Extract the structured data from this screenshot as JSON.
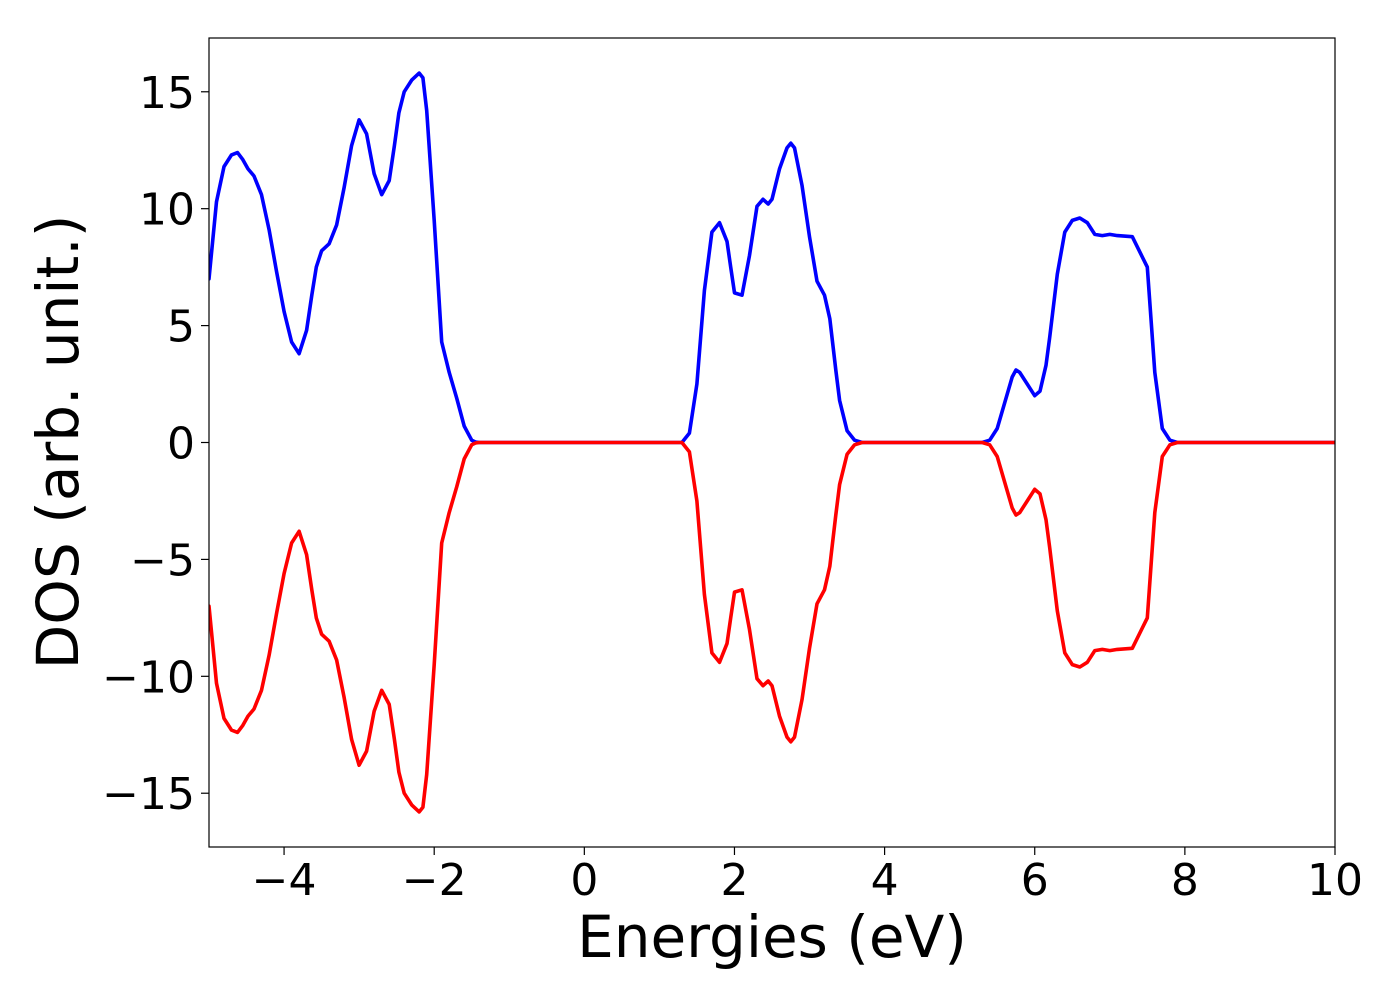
{
  "chart_data": {
    "type": "line",
    "title": "",
    "xlabel": "Energies (eV)",
    "ylabel": "DOS (arb. unit.)",
    "xlim": [
      -5,
      10
    ],
    "ylim": [
      -17.3,
      17.3
    ],
    "x_ticks": [
      -4,
      -2,
      0,
      2,
      4,
      6,
      8,
      10
    ],
    "x_tick_labels": [
      "−4",
      "−2",
      "0",
      "2",
      "4",
      "6",
      "8",
      "10"
    ],
    "y_ticks": [
      15,
      10,
      5,
      0,
      -5,
      -10,
      -15
    ],
    "y_tick_labels": [
      "15",
      "10",
      "5",
      "0",
      "−5",
      "−10",
      "−15"
    ],
    "grid": false,
    "legend": "none",
    "series": [
      {
        "color": "#0000ff",
        "x": [
          -5.0,
          -4.9,
          -4.8,
          -4.7,
          -4.62,
          -4.55,
          -4.48,
          -4.4,
          -4.3,
          -4.2,
          -4.1,
          -4.0,
          -3.9,
          -3.8,
          -3.7,
          -3.63,
          -3.57,
          -3.5,
          -3.4,
          -3.3,
          -3.2,
          -3.1,
          -3.0,
          -2.9,
          -2.8,
          -2.7,
          -2.6,
          -2.53,
          -2.47,
          -2.4,
          -2.3,
          -2.2,
          -2.15,
          -2.1,
          -2.0,
          -1.9,
          -1.8,
          -1.7,
          -1.6,
          -1.5,
          -1.45,
          -1.4,
          -1.3,
          -1.2,
          -1.1,
          -1.0,
          -0.9,
          -0.8,
          -0.7,
          -0.6,
          -0.5,
          0.0,
          1.0,
          1.3,
          1.4,
          1.5,
          1.6,
          1.7,
          1.8,
          1.9,
          1.95,
          2.0,
          2.1,
          2.2,
          2.3,
          2.38,
          2.45,
          2.5,
          2.6,
          2.7,
          2.75,
          2.8,
          2.9,
          3.0,
          3.1,
          3.2,
          3.27,
          3.35,
          3.4,
          3.5,
          3.6,
          3.7,
          3.8,
          3.9,
          4.0,
          4.1,
          4.2,
          4.3,
          4.4,
          4.5,
          5.0,
          5.2,
          5.3,
          5.4,
          5.5,
          5.6,
          5.7,
          5.75,
          5.8,
          5.9,
          6.0,
          6.07,
          6.15,
          6.2,
          6.3,
          6.4,
          6.5,
          6.6,
          6.7,
          6.8,
          6.9,
          7.0,
          7.1,
          7.3,
          7.5,
          7.6,
          7.7,
          7.8,
          7.9,
          8.0,
          8.1,
          8.2,
          8.3,
          8.5,
          9.0,
          10.0
        ],
        "y": [
          7.0,
          10.3,
          11.8,
          12.3,
          12.4,
          12.1,
          11.7,
          11.4,
          10.6,
          9.1,
          7.3,
          5.6,
          4.3,
          3.8,
          4.8,
          6.3,
          7.5,
          8.2,
          8.5,
          9.3,
          10.9,
          12.7,
          13.8,
          13.2,
          11.5,
          10.6,
          11.2,
          12.7,
          14.1,
          15.0,
          15.5,
          15.8,
          15.6,
          14.2,
          9.5,
          4.3,
          3.0,
          1.9,
          0.7,
          0.1,
          0.02,
          0.0,
          0.0,
          0.0,
          0.0,
          0.0,
          0.0,
          0.0,
          0.0,
          0.0,
          0.0,
          0.0,
          0.0,
          0.0,
          0.4,
          2.5,
          6.5,
          9.0,
          9.4,
          8.6,
          7.5,
          6.4,
          6.3,
          8.0,
          10.1,
          10.4,
          10.2,
          10.4,
          11.7,
          12.6,
          12.8,
          12.6,
          11.0,
          8.8,
          6.9,
          6.3,
          5.3,
          3.1,
          1.8,
          0.5,
          0.1,
          0.0,
          0.0,
          0.0,
          0.0,
          0.0,
          0.0,
          0.0,
          0.0,
          0.0,
          0.0,
          0.0,
          0.0,
          0.1,
          0.6,
          1.7,
          2.8,
          3.1,
          3.0,
          2.5,
          2.0,
          2.2,
          3.3,
          4.5,
          7.2,
          9.0,
          9.5,
          9.6,
          9.4,
          8.9,
          8.85,
          8.9,
          8.85,
          8.8,
          7.5,
          3.0,
          0.6,
          0.1,
          0.0,
          0.0,
          0.0,
          0.0,
          0.0,
          0.0,
          0.0,
          0.0
        ]
      },
      {
        "color": "#ff0000",
        "x": [
          -5.0,
          -4.9,
          -4.8,
          -4.7,
          -4.62,
          -4.55,
          -4.48,
          -4.4,
          -4.3,
          -4.2,
          -4.1,
          -4.0,
          -3.9,
          -3.8,
          -3.7,
          -3.63,
          -3.57,
          -3.5,
          -3.4,
          -3.3,
          -3.2,
          -3.1,
          -3.0,
          -2.9,
          -2.8,
          -2.7,
          -2.6,
          -2.53,
          -2.47,
          -2.4,
          -2.3,
          -2.2,
          -2.15,
          -2.1,
          -2.0,
          -1.9,
          -1.8,
          -1.7,
          -1.6,
          -1.5,
          -1.45,
          -1.4,
          -1.3,
          -1.2,
          -1.1,
          -1.0,
          -0.9,
          -0.8,
          -0.7,
          -0.6,
          -0.5,
          0.0,
          1.0,
          1.3,
          1.4,
          1.5,
          1.6,
          1.7,
          1.8,
          1.9,
          1.95,
          2.0,
          2.1,
          2.2,
          2.3,
          2.38,
          2.45,
          2.5,
          2.6,
          2.7,
          2.75,
          2.8,
          2.9,
          3.0,
          3.1,
          3.2,
          3.27,
          3.35,
          3.4,
          3.5,
          3.6,
          3.7,
          3.8,
          3.9,
          4.0,
          4.1,
          4.2,
          4.3,
          4.4,
          4.5,
          5.0,
          5.2,
          5.3,
          5.4,
          5.5,
          5.6,
          5.7,
          5.75,
          5.8,
          5.9,
          6.0,
          6.07,
          6.15,
          6.2,
          6.3,
          6.4,
          6.5,
          6.6,
          6.7,
          6.8,
          6.9,
          7.0,
          7.1,
          7.3,
          7.5,
          7.6,
          7.7,
          7.8,
          7.9,
          8.0,
          8.1,
          8.2,
          8.3,
          8.5,
          9.0,
          10.0
        ],
        "y": [
          -7.0,
          -10.3,
          -11.8,
          -12.3,
          -12.4,
          -12.1,
          -11.7,
          -11.4,
          -10.6,
          -9.1,
          -7.3,
          -5.6,
          -4.3,
          -3.8,
          -4.8,
          -6.3,
          -7.5,
          -8.2,
          -8.5,
          -9.3,
          -10.9,
          -12.7,
          -13.8,
          -13.2,
          -11.5,
          -10.6,
          -11.2,
          -12.7,
          -14.1,
          -15.0,
          -15.5,
          -15.8,
          -15.6,
          -14.2,
          -9.5,
          -4.3,
          -3.0,
          -1.9,
          -0.7,
          -0.1,
          -0.02,
          0.0,
          0.0,
          0.0,
          0.0,
          0.0,
          0.0,
          0.0,
          0.0,
          0.0,
          0.0,
          0.0,
          0.0,
          0.0,
          -0.4,
          -2.5,
          -6.5,
          -9.0,
          -9.4,
          -8.6,
          -7.5,
          -6.4,
          -6.3,
          -8.0,
          -10.1,
          -10.4,
          -10.2,
          -10.4,
          -11.7,
          -12.6,
          -12.8,
          -12.6,
          -11.0,
          -8.8,
          -6.9,
          -6.3,
          -5.3,
          -3.1,
          -1.8,
          -0.5,
          -0.1,
          0.0,
          0.0,
          0.0,
          0.0,
          0.0,
          0.0,
          0.0,
          0.0,
          0.0,
          0.0,
          0.0,
          0.0,
          -0.1,
          -0.6,
          -1.7,
          -2.8,
          -3.1,
          -3.0,
          -2.5,
          -2.0,
          -2.2,
          -3.3,
          -4.5,
          -7.2,
          -9.0,
          -9.5,
          -9.6,
          -9.4,
          -8.9,
          -8.85,
          -8.9,
          -8.85,
          -8.8,
          -7.5,
          -3.0,
          -0.6,
          -0.1,
          0.0,
          0.0,
          0.0,
          0.0,
          0.0,
          0.0,
          0.0,
          0.0
        ]
      }
    ]
  }
}
